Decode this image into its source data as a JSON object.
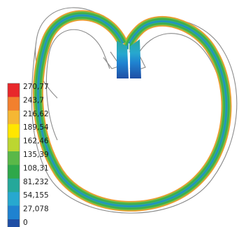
{
  "legend": {
    "labels": [
      "270,77",
      "243,7",
      "216,62",
      "189,54",
      "162,46",
      "135,39",
      "108,31",
      "81,232",
      "54,155",
      "27,078",
      "0"
    ],
    "colors": [
      "#e8282b",
      "#f2802e",
      "#f5b733",
      "#ffe600",
      "#bcd631",
      "#5ab848",
      "#2ea84a",
      "#25a89a",
      "#27a8cf",
      "#1f82d0",
      "#1f4fa5"
    ]
  },
  "colors": {
    "outline": "#8a8a8a",
    "band_outer": "#f39a2f",
    "band_mid": "#3fae4a",
    "band_core": "#2aa7a0",
    "band_inner": "#9ccb3f",
    "root": "#1f4fa5",
    "root_light": "#27a8cf"
  }
}
